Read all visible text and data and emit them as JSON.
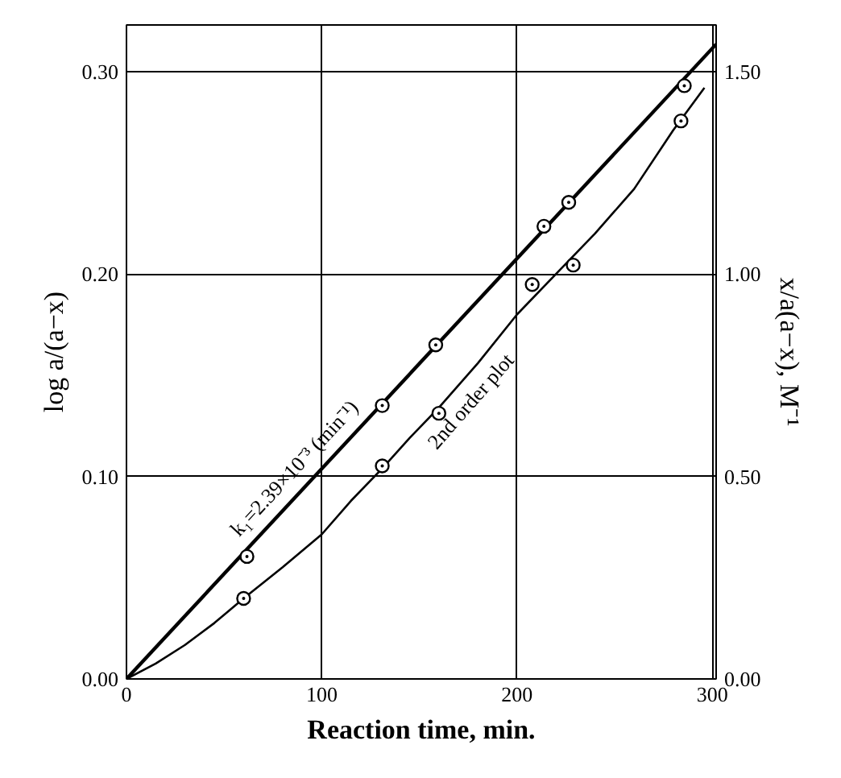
{
  "chart_data": {
    "type": "line",
    "xlabel": "Reaction time, min.",
    "ylabel": "log a/(a−x)",
    "y2label": "x/a(a−x), M⁻¹",
    "xlim": [
      0,
      302
    ],
    "ylim": [
      0,
      0.323
    ],
    "y2lim": [
      0,
      1.615
    ],
    "xticks": [
      0,
      100,
      200,
      300
    ],
    "yticks": [
      {
        "value": 0,
        "label": "0.00"
      },
      {
        "value": 0.1,
        "label": "0.10"
      },
      {
        "value": 0.2,
        "label": "0.20"
      },
      {
        "value": 0.3,
        "label": "0.30"
      }
    ],
    "y2ticks": [
      {
        "value": 0,
        "label": "0.00"
      },
      {
        "value": 0.5,
        "label": "0.50"
      },
      {
        "value": 1.0,
        "label": "1.00"
      },
      {
        "value": 1.5,
        "label": "1.50"
      }
    ],
    "grid": true,
    "series": [
      {
        "color": "#000000",
        "x": [
          0,
          302
        ],
        "values": [
          0,
          0.3135
        ]
      },
      {
        "type": "scatter",
        "marker": "circle",
        "color": "#000000",
        "x": [
          61.7,
          131,
          158.4,
          213.8,
          226.5,
          285.7
        ],
        "values": [
          0.0605,
          0.135,
          0.165,
          0.2236,
          0.2354,
          0.293
        ]
      },
      {
        "axis": "y2",
        "color": "#000000",
        "x": [
          0,
          15,
          30,
          45,
          60,
          80,
          100,
          115,
          131,
          145,
          160,
          180,
          200,
          220,
          240,
          260,
          280,
          296
        ],
        "values": [
          0,
          0.038,
          0.084,
          0.138,
          0.199,
          0.276,
          0.357,
          0.44,
          0.52,
          0.595,
          0.67,
          0.78,
          0.9,
          1.0,
          1.1,
          1.21,
          1.355,
          1.46
        ]
      },
      {
        "type": "scatter",
        "axis": "y2",
        "marker": "circle",
        "color": "#000000",
        "x": [
          60,
          131,
          160,
          207.8,
          228.8,
          284
        ],
        "values": [
          0.199,
          0.526,
          0.656,
          0.974,
          1.022,
          1.378
        ]
      }
    ],
    "annotations": [
      "k₁=2.39×10⁻³ (min⁻¹)",
      "2nd order plot"
    ]
  }
}
